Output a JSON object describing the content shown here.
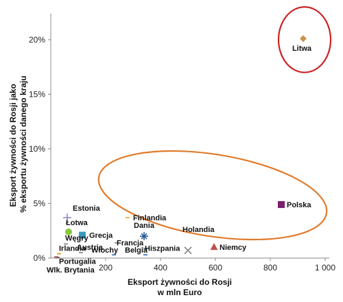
{
  "chart_data": {
    "type": "scatter",
    "title": "",
    "xlabel_lines": [
      "Eksport żywności do Rosji",
      "w mln Euro"
    ],
    "ylabel_lines": [
      "Eksport żywności do Rosji jako",
      "% eksportu żywności danego kraju"
    ],
    "xlim": [
      0,
      1000
    ],
    "ylim": [
      0,
      22
    ],
    "x_ticks": [
      200,
      400,
      600,
      800,
      1000
    ],
    "x_tick_labels": [
      "200",
      "400",
      "600",
      "800",
      "1 000"
    ],
    "y_ticks": [
      0,
      5,
      10,
      15,
      20
    ],
    "y_tick_labels": [
      "0%",
      "5%",
      "10%",
      "15%",
      "20%"
    ],
    "grid": false,
    "points": [
      {
        "label": "Litwa",
        "x": 920,
        "y": 20.1,
        "marker": "diamond",
        "color": "#c8944a"
      },
      {
        "label": "Polska",
        "x": 840,
        "y": 4.9,
        "marker": "square",
        "color": "#7b1f6e"
      },
      {
        "label": "Finlandia",
        "x": 280,
        "y": 3.7,
        "marker": "dash",
        "color": "#f0b24a"
      },
      {
        "label": "Estonia",
        "x": 60,
        "y": 3.7,
        "marker": "plus",
        "color": "#8a84c9"
      },
      {
        "label": "Łotwa",
        "x": 65,
        "y": 2.4,
        "marker": "circle",
        "color": "#8cc63f"
      },
      {
        "label": "Grecja",
        "x": 115,
        "y": 2.1,
        "marker": "square",
        "color": "#3a9bc1"
      },
      {
        "label": "Dania",
        "x": 340,
        "y": 2.0,
        "marker": "star",
        "color": "#2b5e9e"
      },
      {
        "label": "Węgry",
        "x": 55,
        "y": 1.3,
        "marker": "dash",
        "color": "#999999"
      },
      {
        "label": "Austria",
        "x": 110,
        "y": 0.5,
        "marker": "dash",
        "color": "#999999"
      },
      {
        "label": "Francja",
        "x": 240,
        "y": 1.4,
        "marker": "dash",
        "color": "#999999"
      },
      {
        "label": "Hiszpania",
        "x": 340,
        "y": 0.9,
        "marker": "dash",
        "color": "#a3c3e4"
      },
      {
        "label": "Holandia",
        "x": 500,
        "y": 0.7,
        "marker": "x",
        "color": "#8c8c8c"
      },
      {
        "label": "Niemcy",
        "x": 595,
        "y": 1.0,
        "marker": "triangle",
        "color": "#c0504d"
      },
      {
        "label": "Irlandia",
        "x": 30,
        "y": 0.4,
        "marker": "dash",
        "color": "#e0a030"
      },
      {
        "label": "Włochy",
        "x": 230,
        "y": 0.3,
        "marker": "dash",
        "color": "#4f81bd"
      },
      {
        "label": "Belgia",
        "x": 345,
        "y": 0.3,
        "marker": "dash",
        "color": "#4f81bd"
      },
      {
        "label": "Portugalia",
        "x": 20,
        "y": 0.1,
        "marker": "dash",
        "color": "#c0504d"
      },
      {
        "label": "Wlk. Brytania",
        "x": 25,
        "y": 0.05,
        "marker": "dash",
        "color": "#666666"
      }
    ],
    "annotations": [
      {
        "shape": "ellipse",
        "color": "#cc2222",
        "x_range": [
          830,
          1020
        ],
        "y_range": [
          17.0,
          23.0
        ]
      },
      {
        "shape": "ellipse",
        "color": "#e07a2a",
        "x_range": [
          170,
          1010
        ],
        "y_range": [
          2.0,
          9.5
        ],
        "rotation_deg": 9
      }
    ]
  }
}
